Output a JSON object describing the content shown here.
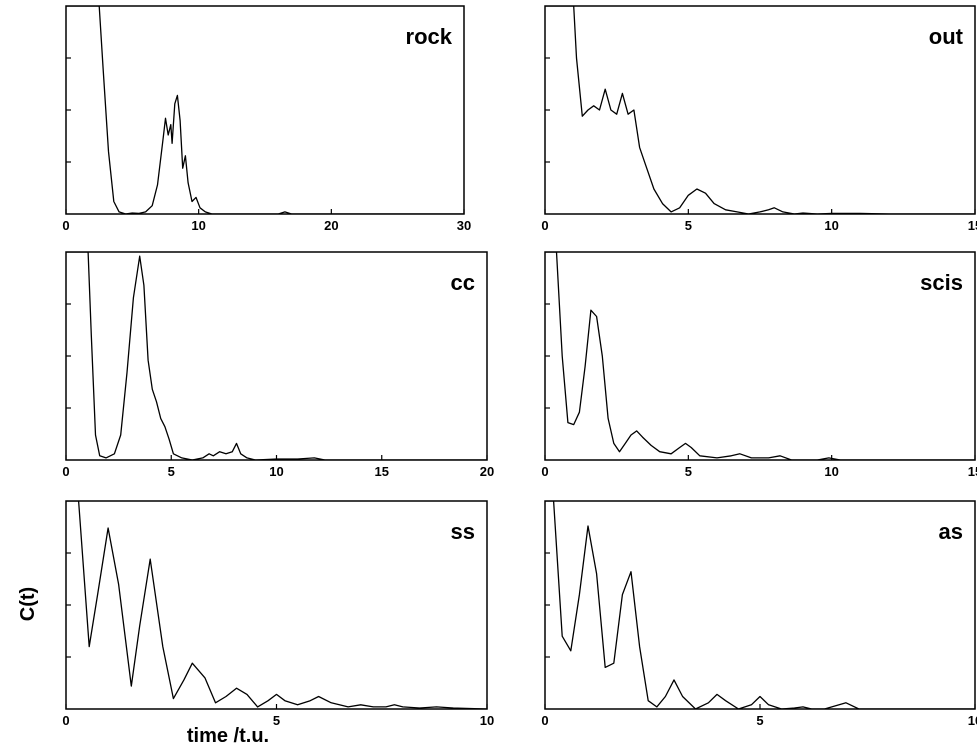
{
  "figure": {
    "ylabel": "C(t)",
    "xlabel": "time /t.u."
  },
  "chart_data": [
    {
      "type": "line",
      "title": "rock",
      "xlim": [
        0,
        30
      ],
      "ylim": [
        0,
        1
      ],
      "xticks": [
        0,
        10,
        20,
        30
      ],
      "xticklabels": [
        "0",
        "10",
        "20",
        "30"
      ],
      "yticks": [
        0.25,
        0.5,
        0.75
      ],
      "x": [
        0,
        2.5,
        2.8,
        3.2,
        3.6,
        4.0,
        4.5,
        5.0,
        5.5,
        6.0,
        6.5,
        6.9,
        7.3,
        7.5,
        7.7,
        7.9,
        8.0,
        8.2,
        8.4,
        8.6,
        8.8,
        9.0,
        9.2,
        9.5,
        9.8,
        10.1,
        10.5,
        11.0,
        12,
        14,
        16,
        16.5,
        17,
        18,
        20,
        30
      ],
      "y": [
        1,
        1,
        0.7,
        0.3,
        0.06,
        0.01,
        0.0,
        0.005,
        0.003,
        0.01,
        0.04,
        0.14,
        0.35,
        0.46,
        0.38,
        0.43,
        0.34,
        0.53,
        0.57,
        0.45,
        0.22,
        0.28,
        0.15,
        0.06,
        0.08,
        0.03,
        0.01,
        0.0,
        0.0,
        0.0,
        0.0,
        0.01,
        0.0,
        0.0,
        0.0,
        0.0
      ]
    },
    {
      "type": "line",
      "title": "out",
      "xlim": [
        0,
        15
      ],
      "ylim": [
        0,
        1
      ],
      "xticks": [
        0,
        5,
        10,
        15
      ],
      "xticklabels": [
        "0",
        "5",
        "10",
        "15"
      ],
      "yticks": [
        0.25,
        0.5,
        0.75
      ],
      "x": [
        0,
        1.0,
        1.1,
        1.3,
        1.5,
        1.7,
        1.9,
        2.1,
        2.3,
        2.5,
        2.7,
        2.9,
        3.1,
        3.3,
        3.5,
        3.8,
        4.1,
        4.4,
        4.7,
        5.0,
        5.3,
        5.6,
        5.9,
        6.3,
        6.7,
        7.1,
        7.5,
        7.8,
        8.0,
        8.3,
        8.7,
        9.0,
        9.5,
        10,
        11,
        12,
        15
      ],
      "y": [
        1,
        1,
        0.75,
        0.47,
        0.5,
        0.52,
        0.5,
        0.6,
        0.5,
        0.48,
        0.58,
        0.48,
        0.5,
        0.32,
        0.24,
        0.12,
        0.05,
        0.01,
        0.03,
        0.09,
        0.12,
        0.1,
        0.05,
        0.02,
        0.01,
        0.0,
        0.01,
        0.02,
        0.03,
        0.01,
        0.0,
        0.005,
        0.0,
        0.003,
        0.003,
        0.0,
        0.0
      ]
    },
    {
      "type": "line",
      "title": "cc",
      "xlim": [
        0,
        20
      ],
      "ylim": [
        0,
        1
      ],
      "xticks": [
        0,
        5,
        10,
        15,
        20
      ],
      "xticklabels": [
        "0",
        "5",
        "10",
        "15",
        "20"
      ],
      "yticks": [
        0.25,
        0.5,
        0.75
      ],
      "x": [
        0,
        1.05,
        1.2,
        1.4,
        1.6,
        1.9,
        2.3,
        2.6,
        2.9,
        3.2,
        3.5,
        3.7,
        3.9,
        4.1,
        4.3,
        4.5,
        4.7,
        4.9,
        5.1,
        5.5,
        6.0,
        6.5,
        6.8,
        7.0,
        7.3,
        7.6,
        7.9,
        8.1,
        8.3,
        8.6,
        9.0,
        10,
        11,
        11.8,
        12.3,
        13,
        15,
        20
      ],
      "y": [
        1,
        1,
        0.6,
        0.12,
        0.02,
        0.01,
        0.03,
        0.12,
        0.42,
        0.78,
        0.98,
        0.84,
        0.48,
        0.34,
        0.28,
        0.2,
        0.16,
        0.1,
        0.03,
        0.01,
        0.0,
        0.01,
        0.03,
        0.02,
        0.04,
        0.03,
        0.04,
        0.08,
        0.03,
        0.01,
        0.0,
        0.005,
        0.005,
        0.01,
        0.0,
        0.0,
        0.0,
        0.0
      ]
    },
    {
      "type": "line",
      "title": "scis",
      "xlim": [
        0,
        15
      ],
      "ylim": [
        0,
        1
      ],
      "xticks": [
        0,
        5,
        10,
        15
      ],
      "xticklabels": [
        "0",
        "5",
        "10",
        "15"
      ],
      "yticks": [
        0.25,
        0.5,
        0.75
      ],
      "x": [
        0,
        0.4,
        0.6,
        0.8,
        1.0,
        1.2,
        1.4,
        1.6,
        1.8,
        2.0,
        2.2,
        2.4,
        2.6,
        2.8,
        3.0,
        3.2,
        3.4,
        3.7,
        4.0,
        4.4,
        4.7,
        4.9,
        5.1,
        5.4,
        6.0,
        6.5,
        6.8,
        7.2,
        7.8,
        8.2,
        8.6,
        9.5,
        9.9,
        10.3,
        12,
        15
      ],
      "y": [
        1,
        1,
        0.5,
        0.18,
        0.17,
        0.23,
        0.45,
        0.72,
        0.69,
        0.5,
        0.2,
        0.08,
        0.04,
        0.08,
        0.12,
        0.14,
        0.11,
        0.07,
        0.04,
        0.03,
        0.06,
        0.08,
        0.06,
        0.02,
        0.01,
        0.02,
        0.03,
        0.01,
        0.01,
        0.02,
        0.0,
        0.0,
        0.01,
        0.0,
        0.0,
        0.0
      ]
    },
    {
      "type": "line",
      "title": "ss",
      "xlim": [
        0,
        10
      ],
      "ylim": [
        0,
        1
      ],
      "xticks": [
        0,
        5,
        10
      ],
      "xticklabels": [
        "0",
        "5",
        "10"
      ],
      "yticks": [
        0.25,
        0.5,
        0.75
      ],
      "x": [
        0,
        0.3,
        0.55,
        0.75,
        1.0,
        1.25,
        1.55,
        1.75,
        2.0,
        2.3,
        2.55,
        2.8,
        3.0,
        3.3,
        3.55,
        3.8,
        4.05,
        4.3,
        4.55,
        4.8,
        5.0,
        5.2,
        5.5,
        5.8,
        6.0,
        6.3,
        6.7,
        7.0,
        7.3,
        7.6,
        7.8,
        8.0,
        8.4,
        8.8,
        9.2,
        10
      ],
      "y": [
        1,
        1,
        0.3,
        0.55,
        0.87,
        0.6,
        0.11,
        0.4,
        0.72,
        0.3,
        0.05,
        0.14,
        0.22,
        0.15,
        0.03,
        0.06,
        0.1,
        0.07,
        0.01,
        0.04,
        0.07,
        0.04,
        0.02,
        0.04,
        0.06,
        0.03,
        0.01,
        0.02,
        0.01,
        0.01,
        0.02,
        0.01,
        0.005,
        0.01,
        0.005,
        0.0
      ]
    },
    {
      "type": "line",
      "title": "as",
      "xlim": [
        0,
        10
      ],
      "ylim": [
        0,
        1
      ],
      "xticks": [
        0,
        5,
        10
      ],
      "xticklabels": [
        "0",
        "5",
        "10"
      ],
      "yticks": [
        0.25,
        0.5,
        0.75
      ],
      "x": [
        0,
        0.2,
        0.4,
        0.6,
        0.8,
        1.0,
        1.2,
        1.4,
        1.6,
        1.8,
        2.0,
        2.2,
        2.4,
        2.6,
        2.8,
        3.0,
        3.2,
        3.5,
        3.8,
        4.0,
        4.2,
        4.5,
        4.8,
        5.0,
        5.2,
        5.5,
        5.8,
        6.0,
        6.2,
        6.5,
        7.0,
        7.3,
        7.6,
        8.0,
        9.0,
        10
      ],
      "y": [
        1,
        1,
        0.35,
        0.28,
        0.55,
        0.88,
        0.65,
        0.2,
        0.22,
        0.55,
        0.66,
        0.3,
        0.04,
        0.01,
        0.06,
        0.14,
        0.06,
        0.0,
        0.03,
        0.07,
        0.04,
        0.0,
        0.02,
        0.06,
        0.02,
        0.0,
        0.005,
        0.01,
        0.0,
        0.0,
        0.03,
        0.0,
        0.0,
        0.0,
        0.0,
        0.0
      ]
    }
  ]
}
